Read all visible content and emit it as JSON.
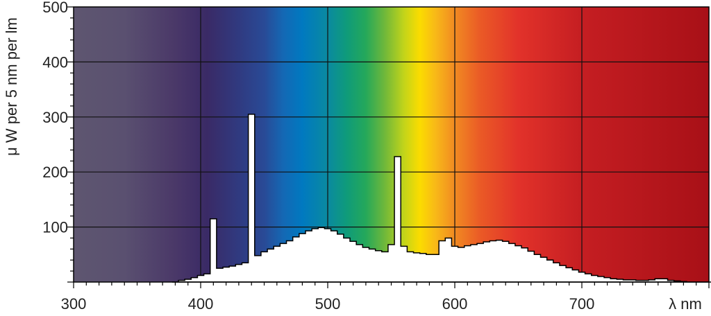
{
  "chart_data": {
    "type": "area",
    "xlabel": "λ nm",
    "ylabel": "μ W per 5 nm per lm",
    "xlim": [
      300,
      800
    ],
    "ylim": [
      0,
      500
    ],
    "x_ticks": [
      "300",
      "400",
      "500",
      "600",
      "700"
    ],
    "y_ticks": [
      "100",
      "200",
      "300",
      "400",
      "500"
    ],
    "grid": true,
    "background": "visible-spectrum gradient",
    "series": [
      {
        "x": [
          380,
          385,
          390,
          395,
          400,
          405,
          410,
          415,
          420,
          425,
          430,
          435,
          440,
          445,
          450,
          455,
          460,
          465,
          470,
          475,
          480,
          485,
          490,
          495,
          500,
          505,
          510,
          515,
          520,
          525,
          530,
          535,
          540,
          545,
          550,
          555,
          560,
          565,
          570,
          575,
          580,
          585,
          590,
          595,
          600,
          605,
          610,
          615,
          620,
          625,
          630,
          635,
          640,
          645,
          650,
          655,
          660,
          665,
          670,
          675,
          680,
          685,
          690,
          695,
          700,
          705,
          710,
          715,
          720,
          725,
          730,
          735,
          740,
          745,
          750,
          755,
          760,
          765,
          770,
          775,
          780,
          785,
          790,
          795,
          800
        ],
        "y": [
          0,
          3,
          5,
          8,
          12,
          15,
          115,
          25,
          27,
          29,
          32,
          35,
          305,
          48,
          55,
          60,
          65,
          70,
          75,
          82,
          88,
          93,
          97,
          99,
          97,
          93,
          87,
          80,
          74,
          68,
          63,
          60,
          57,
          55,
          68,
          228,
          65,
          55,
          53,
          52,
          50,
          50,
          75,
          80,
          65,
          63,
          66,
          68,
          70,
          73,
          75,
          76,
          74,
          70,
          66,
          62,
          56,
          50,
          45,
          40,
          35,
          30,
          26,
          22,
          18,
          15,
          12,
          10,
          8,
          6,
          5,
          4,
          4,
          3,
          3,
          4,
          6,
          6,
          3,
          2,
          1,
          0,
          0,
          0,
          0
        ]
      }
    ]
  }
}
